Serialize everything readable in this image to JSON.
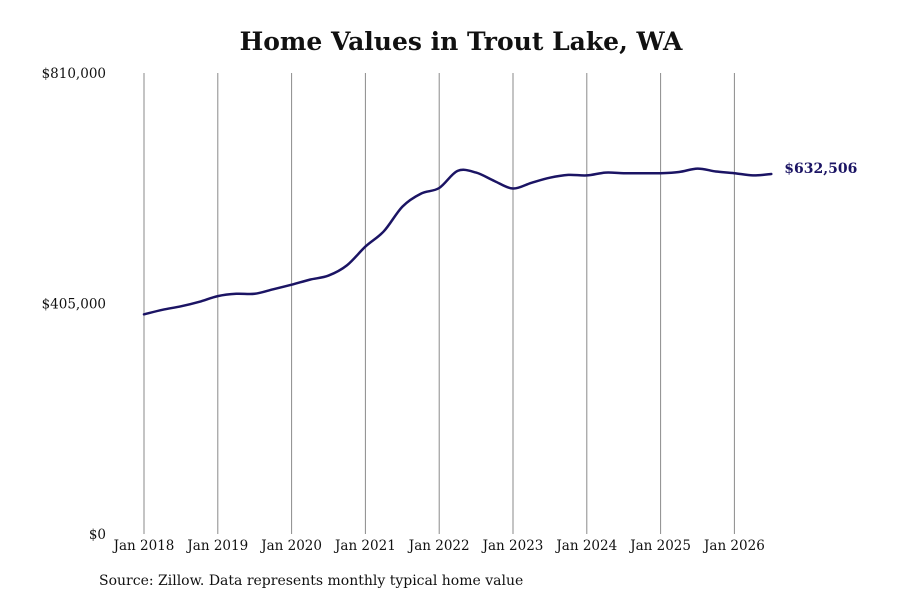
{
  "chart_data": {
    "type": "line",
    "title": "Home Values in Trout Lake, WA",
    "xlabel": "",
    "ylabel": "",
    "ylim": [
      0,
      810000
    ],
    "y_ticks": [
      {
        "value": 0,
        "label": "$0"
      },
      {
        "value": 405000,
        "label": "$405,000"
      },
      {
        "value": 810000,
        "label": "$810,000"
      }
    ],
    "x_ticks": [
      "Jan 2018",
      "Jan 2019",
      "Jan 2020",
      "Jan 2021",
      "Jan 2022",
      "Jan 2023",
      "Jan 2024",
      "Jan 2025",
      "Jan 2026"
    ],
    "x_range": [
      "2018-01",
      "2026-07"
    ],
    "grid": "vertical lines at each January",
    "legend": "none",
    "line_color": "#1b1464",
    "series": [
      {
        "x": [
          "2018-01",
          "2018-04",
          "2018-07",
          "2018-10",
          "2019-01",
          "2019-04",
          "2019-07",
          "2019-10",
          "2020-01",
          "2020-04",
          "2020-07",
          "2020-10",
          "2021-01",
          "2021-04",
          "2021-07",
          "2021-10",
          "2022-01",
          "2022-04",
          "2022-07",
          "2022-10",
          "2023-01",
          "2023-04",
          "2023-07",
          "2023-10",
          "2024-01",
          "2024-04",
          "2024-07",
          "2024-10",
          "2025-01",
          "2025-04",
          "2025-07",
          "2025-10",
          "2026-01",
          "2026-04",
          "2026-07"
        ],
        "values": [
          386000,
          394000,
          400000,
          408000,
          418000,
          422000,
          422000,
          430000,
          438000,
          447000,
          454000,
          472000,
          505000,
          532000,
          575000,
          598000,
          608000,
          638000,
          635000,
          620000,
          607000,
          617000,
          626000,
          631000,
          630000,
          635000,
          634000,
          634000,
          634000,
          636000,
          642000,
          637000,
          634000,
          630000,
          632506
        ]
      }
    ],
    "end_label": "$632,506"
  },
  "source": "Source: Zillow. Data represents monthly typical home value"
}
